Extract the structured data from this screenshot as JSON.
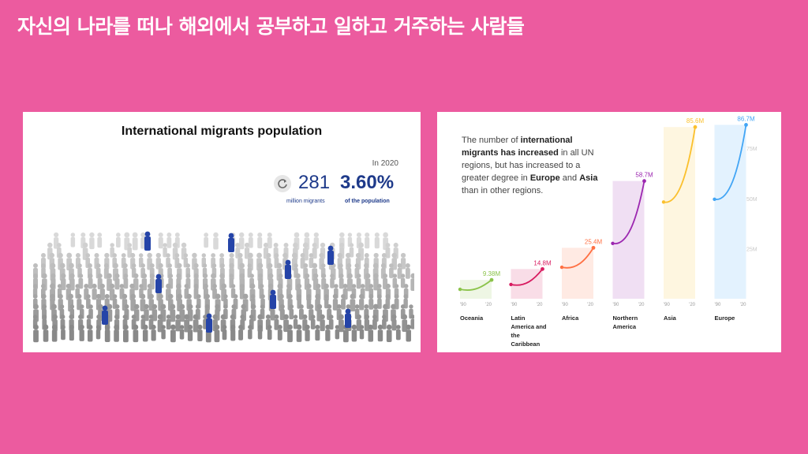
{
  "slide": {
    "title": "자신의 나라를 떠나 해외에서 공부하고 일하고 거주하는 사람들"
  },
  "left_panel": {
    "title": "International migrants population",
    "year_label": "In 2020",
    "migrant_count": "281",
    "migrant_count_label": "million migrants",
    "population_share": "3.60%",
    "population_share_label": "of the population",
    "icon": "refresh-icon",
    "colors": {
      "highlight": "#2544a8",
      "crowd_light": "#d9d9d9",
      "crowd_dark": "#8c8c8c"
    }
  },
  "right_panel": {
    "text_parts": [
      "The number of ",
      "international migrants has increased",
      " in all UN regions, but has increased to a greater degree in ",
      "Europe",
      " and ",
      "Asia",
      " than in other regions."
    ]
  },
  "chart_data": {
    "type": "line",
    "title": "",
    "x_tick_labels": [
      "'90",
      "'20"
    ],
    "y_tick_labels": [
      "25M",
      "50M",
      "75M"
    ],
    "ylim": [
      0,
      90
    ],
    "series": [
      {
        "name": "Oceania",
        "label_lines": [
          "Oceania"
        ],
        "start": 4.7,
        "end": 9.38,
        "end_label": "9.38M",
        "color": "#8bc34a"
      },
      {
        "name": "Latin America and the Caribbean",
        "label_lines": [
          "Latin",
          "America and",
          "the",
          "Caribbean"
        ],
        "start": 7.1,
        "end": 14.8,
        "end_label": "14.8M",
        "color": "#d81b60"
      },
      {
        "name": "Africa",
        "label_lines": [
          "Africa"
        ],
        "start": 15.7,
        "end": 25.4,
        "end_label": "25.4M",
        "color": "#ff7043"
      },
      {
        "name": "Northern America",
        "label_lines": [
          "Northern",
          "America"
        ],
        "start": 27.6,
        "end": 58.7,
        "end_label": "58.7M",
        "color": "#9c27b0"
      },
      {
        "name": "Asia",
        "label_lines": [
          "Asia"
        ],
        "start": 48.2,
        "end": 85.6,
        "end_label": "85.6M",
        "color": "#fbc02d"
      },
      {
        "name": "Europe",
        "label_lines": [
          "Europe"
        ],
        "start": 49.6,
        "end": 86.7,
        "end_label": "86.7M",
        "color": "#42a5f5"
      }
    ]
  }
}
